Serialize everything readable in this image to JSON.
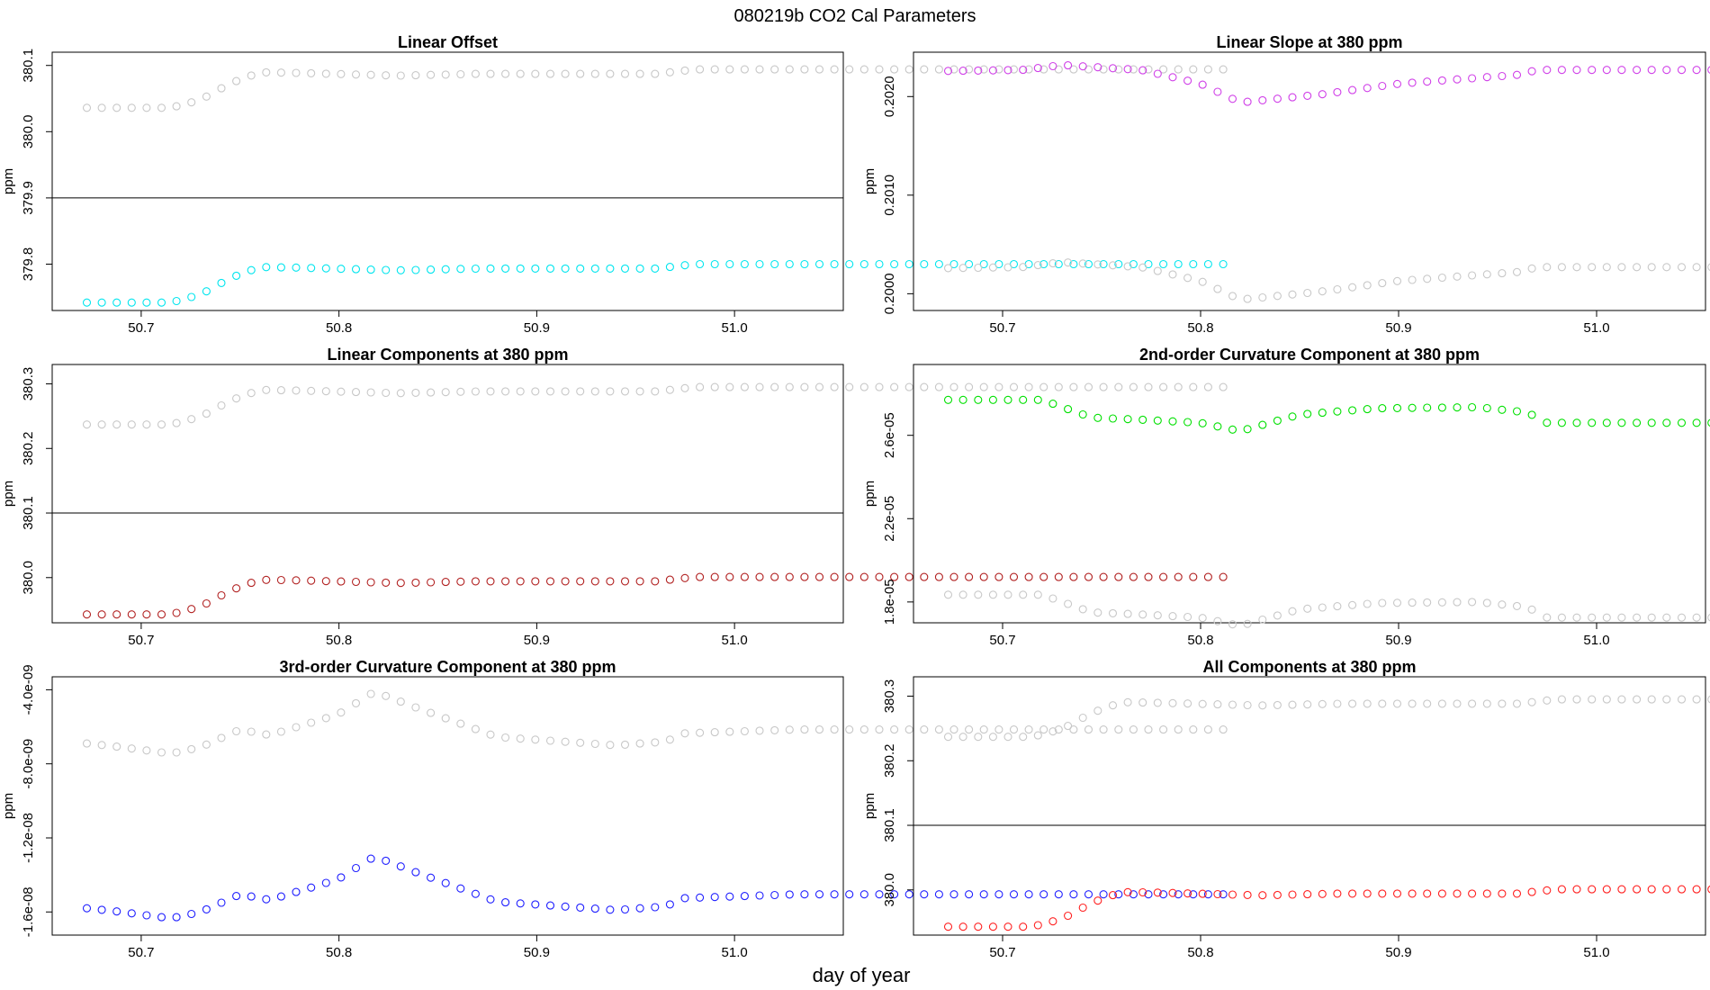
{
  "figure": {
    "title": "080219b   CO2 Cal Parameters",
    "xlabel": "day of year"
  },
  "colors": {
    "gray": "#c8c8c8",
    "cyan": "#00e5ee",
    "magenta": "#d040e8",
    "brown": "#b22222",
    "green": "#00e000",
    "blue": "#2020ff",
    "red": "#ff2020"
  },
  "chart_data": [
    {
      "type": "scatter",
      "title": "Linear Offset",
      "ylabel": "ppm",
      "xlim": [
        50.655,
        51.055
      ],
      "ylim": [
        379.73,
        380.12
      ],
      "xticks": [
        "50.7",
        "50.8",
        "50.9",
        "51.0"
      ],
      "yticks": [
        "379.8",
        "379.9",
        "380.0",
        "380.1"
      ],
      "hline": 379.9,
      "series": [
        {
          "name": "gray",
          "color": "gray",
          "base": 380.036,
          "amp": 0.054,
          "shape": "step"
        },
        {
          "name": "cyan",
          "color": "cyan",
          "base": 379.742,
          "amp": 0.054,
          "shape": "step"
        }
      ]
    },
    {
      "type": "scatter",
      "title": "Linear Slope at 380 ppm",
      "ylabel": "ppm",
      "xlim": [
        50.655,
        51.055
      ],
      "ylim": [
        0.19983,
        0.20245
      ],
      "xticks": [
        "50.7",
        "50.8",
        "50.9",
        "51.0"
      ],
      "yticks": [
        "0.2000",
        "0.2010",
        "0.2020"
      ],
      "series": [
        {
          "name": "magenta",
          "color": "magenta",
          "base": 0.20226,
          "shape": "slope"
        },
        {
          "name": "gray",
          "color": "gray",
          "base": 0.20026,
          "shape": "slope"
        }
      ]
    },
    {
      "type": "scatter",
      "title": "Linear Components at 380 ppm",
      "ylabel": "ppm",
      "xlim": [
        50.655,
        51.055
      ],
      "ylim": [
        379.93,
        380.33
      ],
      "xticks": [
        "50.7",
        "50.8",
        "50.9",
        "51.0"
      ],
      "yticks": [
        "380.0",
        "380.1",
        "380.2",
        "380.3"
      ],
      "hline": 380.1,
      "series": [
        {
          "name": "gray",
          "color": "gray",
          "base": 380.237,
          "amp": 0.054,
          "shape": "step"
        },
        {
          "name": "brown",
          "color": "brown",
          "base": 379.943,
          "amp": 0.054,
          "shape": "step"
        }
      ]
    },
    {
      "type": "scatter",
      "title": "2nd-order Curvature Component at 380 ppm",
      "ylabel": "ppm",
      "xlim": [
        50.655,
        51.055
      ],
      "ylim": [
        1.7e-05,
        2.94e-05
      ],
      "xticks": [
        "50.7",
        "50.8",
        "50.9",
        "51.0"
      ],
      "yticks": [
        "1.8e-05",
        "2.2e-05",
        "2.6e-05"
      ],
      "series": [
        {
          "name": "green",
          "color": "green",
          "base": 2.77e-05,
          "shape": "curv2"
        },
        {
          "name": "gray",
          "color": "gray",
          "base": 1.835e-05,
          "shape": "curv2"
        }
      ]
    },
    {
      "type": "scatter",
      "title": "3rd-order Curvature Component at 380 ppm",
      "ylabel": "ppm",
      "xlim": [
        50.655,
        51.055
      ],
      "ylim": [
        -1.725e-08,
        -3.3e-09
      ],
      "xticks": [
        "50.7",
        "50.8",
        "50.9",
        "51.0"
      ],
      "yticks": [
        "-1.6e-08",
        "-1.2e-08",
        "-8.0e-09",
        "-4.0e-09"
      ],
      "series": [
        {
          "name": "gray",
          "color": "gray",
          "base": -6.9e-09,
          "shape": "curv3"
        },
        {
          "name": "blue",
          "color": "blue",
          "base": -1.58e-08,
          "shape": "curv3"
        }
      ]
    },
    {
      "type": "scatter",
      "title": "All Components at 380 ppm",
      "ylabel": "ppm",
      "xlim": [
        50.655,
        51.055
      ],
      "ylim": [
        379.93,
        380.33
      ],
      "xticks": [
        "50.7",
        "50.8",
        "50.9",
        "51.0"
      ],
      "yticks": [
        "380.0",
        "380.1",
        "380.2",
        "380.3"
      ],
      "hline": 380.1,
      "series": [
        {
          "name": "gray",
          "color": "gray",
          "base": 380.237,
          "amp": 0.054,
          "shape": "step"
        },
        {
          "name": "red",
          "color": "red",
          "base": 379.943,
          "amp": 0.054,
          "shape": "step"
        }
      ]
    }
  ]
}
